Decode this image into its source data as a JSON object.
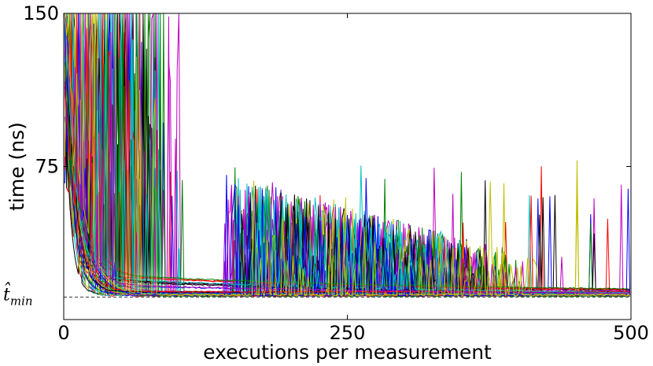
{
  "chart_data": {
    "type": "line",
    "title": "",
    "xlabel": "executions per measurement",
    "ylabel": "time (ns)",
    "xlim": [
      0,
      500
    ],
    "ylim": [
      0,
      150
    ],
    "xticks": [
      0,
      250,
      500
    ],
    "yticks": [
      75,
      150
    ],
    "grid": false,
    "legend": "none",
    "series_count": 48,
    "palette": [
      "#0000ff",
      "#008000",
      "#ff0000",
      "#00bfbf",
      "#bf00bf",
      "#bfbf00",
      "#000000"
    ],
    "reference_line": {
      "label_base": "t̂",
      "label_sub": "min",
      "y": 11,
      "color": "#555555",
      "style": "dashed"
    },
    "description_values": {
      "floor_min": 11,
      "plateau_start_x": 140,
      "plateau_end_x": 420,
      "plateau_top_start": 72,
      "plateau_top_end": 30
    }
  }
}
